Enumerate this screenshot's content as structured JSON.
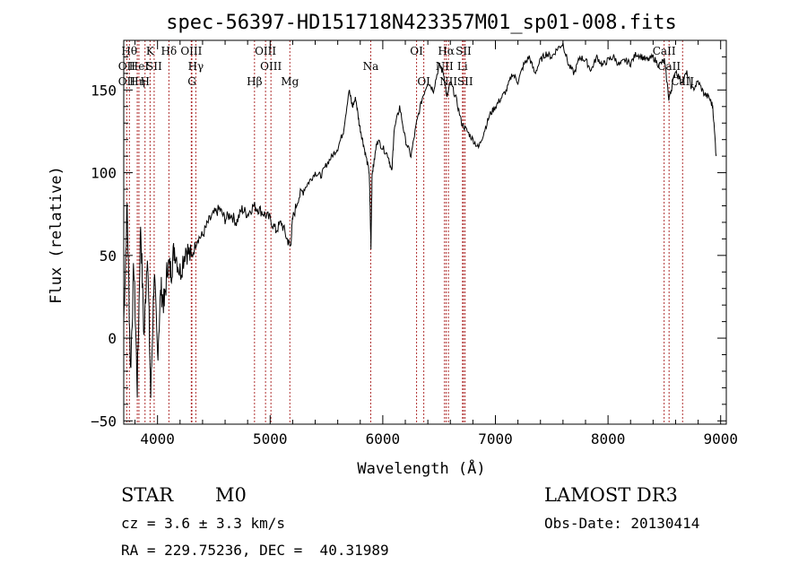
{
  "chart_data": {
    "type": "line",
    "title": "spec-56397-HD151718N423357M01_sp01-008.fits",
    "xlabel": "Wavelength (Å)",
    "ylabel": "Flux (relative)",
    "xlim": [
      3700,
      9050
    ],
    "ylim": [
      -52,
      180
    ],
    "x_ticks": [
      4000,
      5000,
      6000,
      7000,
      8000,
      9000
    ],
    "x_tick_labels": [
      "4000",
      "5000",
      "6000",
      "7000",
      "8000",
      "9000"
    ],
    "y_ticks": [
      -50,
      0,
      50,
      100,
      150
    ],
    "y_tick_labels": [
      "−50",
      "0",
      "50",
      "100",
      "150"
    ],
    "grid": false,
    "series": [
      {
        "x": [
          3700,
          3730,
          3760,
          3790,
          3820,
          3850,
          3880,
          3910,
          3940,
          3970,
          4000,
          4030,
          4060,
          4090,
          4120,
          4150,
          4200,
          4250,
          4300,
          4350,
          4400,
          4450,
          4500,
          4550,
          4600,
          4650,
          4700,
          4750,
          4800,
          4850,
          4900,
          4950,
          5000,
          5050,
          5100,
          5150,
          5180,
          5200,
          5250,
          5300,
          5350,
          5400,
          5450,
          5500,
          5550,
          5600,
          5650,
          5700,
          5730,
          5760,
          5790,
          5820,
          5850,
          5880,
          5895,
          5905,
          5920,
          5950,
          6000,
          6050,
          6080,
          6100,
          6150,
          6200,
          6250,
          6300,
          6350,
          6400,
          6450,
          6500,
          6540,
          6570,
          6600,
          6650,
          6700,
          6750,
          6800,
          6850,
          6900,
          6950,
          7000,
          7050,
          7100,
          7150,
          7200,
          7250,
          7300,
          7350,
          7400,
          7450,
          7500,
          7550,
          7600,
          7650,
          7700,
          7750,
          7800,
          7850,
          7900,
          7950,
          8000,
          8050,
          8100,
          8150,
          8200,
          8250,
          8300,
          8350,
          8400,
          8450,
          8500,
          8540,
          8560,
          8600,
          8650,
          8700,
          8750,
          8800,
          8850,
          8900,
          8930,
          8960
        ],
        "y": [
          10,
          80,
          -20,
          45,
          -30,
          70,
          0,
          55,
          -35,
          40,
          -10,
          30,
          20,
          45,
          40,
          55,
          40,
          55,
          48,
          60,
          62,
          70,
          75,
          78,
          72,
          75,
          70,
          78,
          75,
          80,
          78,
          75,
          72,
          65,
          70,
          60,
          55,
          72,
          85,
          90,
          95,
          100,
          98,
          105,
          110,
          115,
          125,
          150,
          140,
          145,
          130,
          120,
          110,
          100,
          55,
          100,
          105,
          120,
          115,
          110,
          100,
          125,
          140,
          120,
          110,
          130,
          145,
          155,
          150,
          165,
          160,
          145,
          155,
          145,
          130,
          125,
          120,
          115,
          125,
          135,
          140,
          145,
          150,
          160,
          155,
          165,
          170,
          160,
          168,
          172,
          170,
          175,
          178,
          165,
          160,
          170,
          168,
          162,
          170,
          165,
          168,
          170,
          165,
          168,
          166,
          172,
          170,
          168,
          170,
          165,
          168,
          145,
          150,
          162,
          155,
          160,
          150,
          155,
          148,
          145,
          140,
          110
        ]
      }
    ],
    "line_markers": [
      {
        "wavelength": 3750,
        "label": "Hθ",
        "row": 0
      },
      {
        "wavelength": 3727,
        "label": "OII",
        "row": 1
      },
      {
        "wavelength": 3727,
        "label": "OII",
        "row": 2
      },
      {
        "wavelength": 3820,
        "label": "Hη",
        "row": 2
      },
      {
        "wavelength": 3835,
        "label": "HeI",
        "row": 1
      },
      {
        "wavelength": 3889,
        "label": "H",
        "row": 2
      },
      {
        "wavelength": 3934,
        "label": "K",
        "row": 0
      },
      {
        "wavelength": 3970,
        "label": "SII",
        "row": 1
      },
      {
        "wavelength": 4101,
        "label": "Hδ",
        "row": 0
      },
      {
        "wavelength": 4300,
        "label": "OIII",
        "row": 0
      },
      {
        "wavelength": 4340,
        "label": "Hγ",
        "row": 1
      },
      {
        "wavelength": 4305,
        "label": "G",
        "row": 2
      },
      {
        "wavelength": 4861,
        "label": "Hβ",
        "row": 2
      },
      {
        "wavelength": 4959,
        "label": "OIII",
        "row": 0
      },
      {
        "wavelength": 5007,
        "label": "OIII",
        "row": 1
      },
      {
        "wavelength": 5175,
        "label": "Mg",
        "row": 2
      },
      {
        "wavelength": 5893,
        "label": "Na",
        "row": 1
      },
      {
        "wavelength": 6300,
        "label": "OI",
        "row": 0
      },
      {
        "wavelength": 6364,
        "label": "OI",
        "row": 2
      },
      {
        "wavelength": 6563,
        "label": "Hα",
        "row": 0
      },
      {
        "wavelength": 6548,
        "label": "NII",
        "row": 1
      },
      {
        "wavelength": 6583,
        "label": "NII",
        "row": 2
      },
      {
        "wavelength": 6708,
        "label": "Li",
        "row": 1
      },
      {
        "wavelength": 6717,
        "label": "SII",
        "row": 0
      },
      {
        "wavelength": 6731,
        "label": "SII",
        "row": 2
      },
      {
        "wavelength": 8498,
        "label": "CaII",
        "row": 0
      },
      {
        "wavelength": 8542,
        "label": "CaII",
        "row": 1
      },
      {
        "wavelength": 8662,
        "label": "CaII",
        "row": 2
      }
    ]
  },
  "info": {
    "class_label": "STAR",
    "subclass": "M0",
    "cz_text": "cz = 3.6 ± 3.3 km/s",
    "radec_text": "RA = 229.75236, DEC =  40.31989",
    "survey": "LAMOST DR3",
    "obs_date": "Obs-Date: 20130414"
  },
  "colors": {
    "spectrum": "#000000",
    "line_markers": "#b03030",
    "axes": "#000000"
  }
}
